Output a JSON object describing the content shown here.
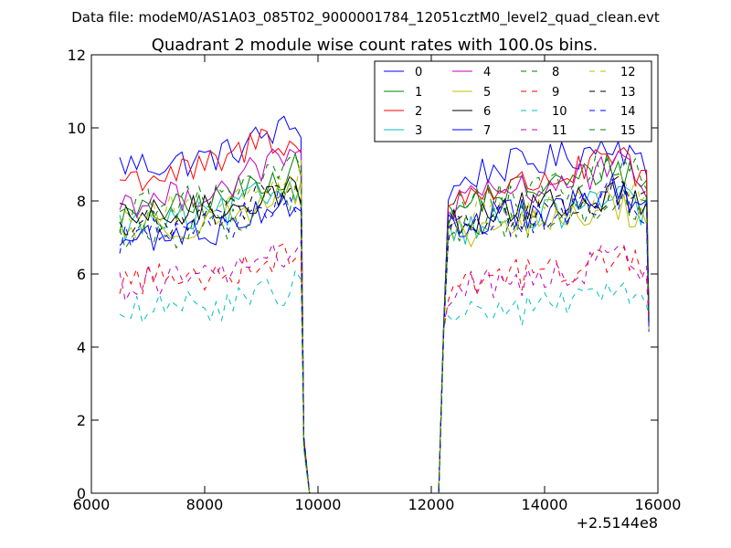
{
  "header": {
    "data_file": "Data file: modeM0/AS1A03_085T02_9000001784_12051cztM0_level2_quad_clean.evt"
  },
  "chart_data": {
    "type": "line",
    "title": "Quadrant 2 module wise count rates with 100.0s bins.",
    "xlabel": "",
    "ylabel": "",
    "x_offset_label": "+2.5144e8",
    "xlim": [
      6000,
      16000
    ],
    "ylim": [
      0,
      12
    ],
    "x_ticks": [
      6000,
      8000,
      10000,
      12000,
      14000,
      16000
    ],
    "x_tick_labels": [
      "6000",
      "8000",
      "10000",
      "12000",
      "14000",
      "16000"
    ],
    "y_ticks": [
      0,
      2,
      4,
      6,
      8,
      10,
      12
    ],
    "y_tick_labels": [
      "0",
      "2",
      "4",
      "6",
      "8",
      "10",
      "12"
    ],
    "grid": false,
    "legend_position": "upper right",
    "legend_columns": 4,
    "x_segment_1": [
      6500,
      9700
    ],
    "x_segment_2": [
      12300,
      15800
    ],
    "bin_width_s": 100,
    "series": [
      {
        "name": "0",
        "color": "#0000ff",
        "dash": "solid",
        "seg1": [
          9.0,
          9.0,
          9.1,
          9.3,
          9.8,
          10.1
        ],
        "seg2": [
          8.2,
          8.8,
          9.0,
          9.1,
          9.3,
          9.7,
          8.8
        ]
      },
      {
        "name": "1",
        "color": "#008000",
        "dash": "solid",
        "seg1": [
          7.5,
          7.7,
          7.8,
          8.1,
          8.6,
          8.9
        ],
        "seg2": [
          7.6,
          8.1,
          8.3,
          8.4,
          8.6,
          9.0,
          8.5
        ]
      },
      {
        "name": "2",
        "color": "#ff0000",
        "dash": "solid",
        "seg1": [
          8.6,
          8.7,
          8.8,
          9.1,
          9.8,
          9.4
        ],
        "seg2": [
          8.0,
          8.3,
          8.4,
          8.6,
          8.8,
          9.2,
          8.6
        ]
      },
      {
        "name": "3",
        "color": "#00bfbf",
        "dash": "solid",
        "seg1": [
          7.3,
          7.4,
          7.5,
          7.7,
          8.2,
          8.4
        ],
        "seg2": [
          7.1,
          7.4,
          7.5,
          7.6,
          7.8,
          8.1,
          7.7
        ]
      },
      {
        "name": "4",
        "color": "#bf00bf",
        "dash": "solid",
        "seg1": [
          8.0,
          8.0,
          8.2,
          8.4,
          9.0,
          9.2
        ],
        "seg2": [
          7.8,
          8.1,
          8.3,
          8.4,
          8.6,
          9.0,
          8.4
        ]
      },
      {
        "name": "5",
        "color": "#bfbf00",
        "dash": "solid",
        "seg1": [
          7.2,
          7.3,
          7.4,
          7.6,
          8.0,
          8.2
        ],
        "seg2": [
          6.9,
          7.2,
          7.3,
          7.4,
          7.6,
          7.9,
          7.5
        ]
      },
      {
        "name": "6",
        "color": "#000000",
        "dash": "solid",
        "seg1": [
          7.5,
          7.6,
          7.7,
          7.9,
          8.1,
          8.3
        ],
        "seg2": [
          7.4,
          7.6,
          7.8,
          7.9,
          8.0,
          8.2,
          7.9
        ]
      },
      {
        "name": "7",
        "color": "#0000ff",
        "dash": "solid",
        "seg1": [
          6.9,
          7.0,
          7.1,
          7.3,
          7.9,
          8.0
        ],
        "seg2": [
          7.2,
          7.5,
          7.6,
          7.7,
          7.9,
          8.3,
          7.8
        ]
      },
      {
        "name": "8",
        "color": "#008000",
        "dash": "dashed",
        "seg1": [
          7.0,
          7.1,
          7.2,
          7.4,
          7.9,
          8.1
        ],
        "seg2": [
          7.0,
          7.3,
          7.4,
          7.5,
          7.7,
          8.1,
          7.6
        ]
      },
      {
        "name": "9",
        "color": "#ff0000",
        "dash": "dashed",
        "seg1": [
          5.8,
          5.9,
          5.9,
          6.1,
          6.4,
          6.5
        ],
        "seg2": [
          5.7,
          5.9,
          6.0,
          6.0,
          6.2,
          6.5,
          6.2
        ]
      },
      {
        "name": "10",
        "color": "#00bfbf",
        "dash": "dashed",
        "seg1": [
          4.9,
          5.0,
          5.1,
          5.2,
          5.4,
          5.7
        ],
        "seg2": [
          4.8,
          5.0,
          5.0,
          5.1,
          5.3,
          5.5,
          5.3
        ]
      },
      {
        "name": "11",
        "color": "#bf00bf",
        "dash": "dashed",
        "seg1": [
          5.7,
          5.8,
          5.9,
          6.1,
          6.4,
          6.6
        ],
        "seg2": [
          5.5,
          5.7,
          5.8,
          5.9,
          6.1,
          6.6,
          6.2
        ]
      },
      {
        "name": "12",
        "color": "#bfbf00",
        "dash": "dashed",
        "seg1": [
          7.6,
          7.7,
          7.8,
          8.0,
          8.6,
          8.7
        ],
        "seg2": [
          7.3,
          7.6,
          7.7,
          7.8,
          8.0,
          8.5,
          8.0
        ]
      },
      {
        "name": "13",
        "color": "#000000",
        "dash": "dashed",
        "seg1": [
          7.3,
          7.4,
          7.5,
          7.7,
          8.1,
          8.3
        ],
        "seg2": [
          7.2,
          7.5,
          7.6,
          7.7,
          7.9,
          8.3,
          7.9
        ]
      },
      {
        "name": "14",
        "color": "#0000ff",
        "dash": "dashed",
        "seg1": [
          7.0,
          7.1,
          7.2,
          7.4,
          7.8,
          8.0
        ],
        "seg2": [
          7.1,
          7.4,
          7.5,
          7.6,
          7.8,
          8.2,
          7.7
        ]
      },
      {
        "name": "15",
        "color": "#008000",
        "dash": "dashed",
        "seg1": [
          7.8,
          7.9,
          8.0,
          8.2,
          8.8,
          9.0
        ],
        "seg2": [
          7.7,
          8.0,
          8.1,
          8.3,
          8.6,
          9.1,
          8.5
        ]
      }
    ]
  }
}
